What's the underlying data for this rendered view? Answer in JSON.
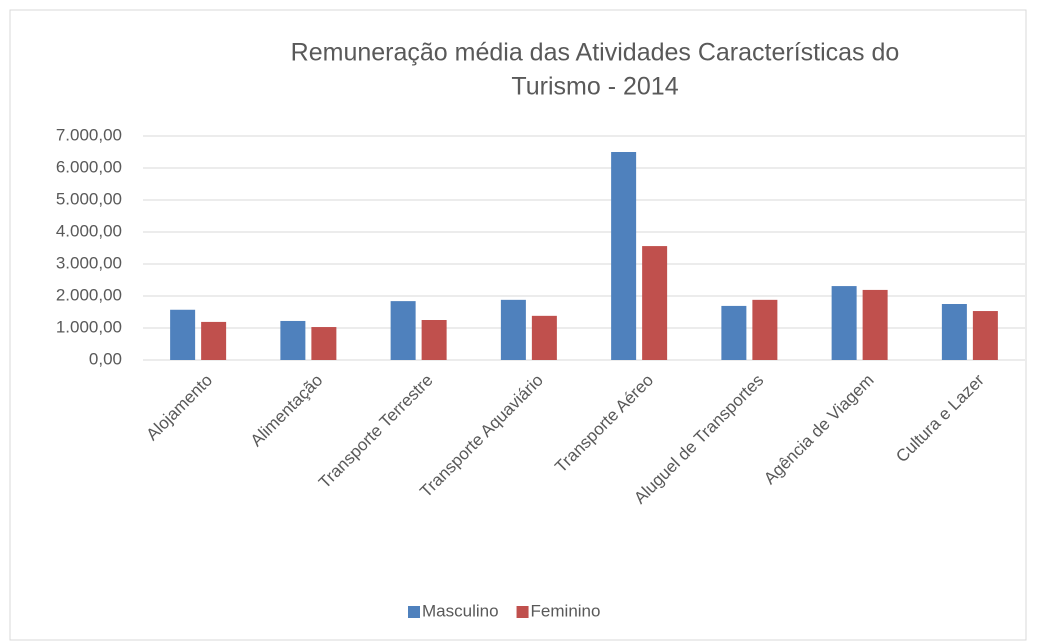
{
  "chart_data": {
    "type": "bar",
    "title": [
      "Remuneração média das Atividades Características do",
      "Turismo - 2014"
    ],
    "categories": [
      "Alojamento",
      "Alimentação",
      "Transporte Terrestre",
      "Transporte Aquaviário",
      "Transporte Aéreo",
      "Aluguel de Transportes",
      "Agência de Viagem",
      "Cultura e Lazer"
    ],
    "series": [
      {
        "name": "Masculino",
        "color": "#4f81bd",
        "values": [
          1570,
          1220,
          1840,
          1880,
          6500,
          1690,
          2310,
          1750
        ]
      },
      {
        "name": "Feminino",
        "color": "#c0504d",
        "values": [
          1190,
          1030,
          1250,
          1380,
          3560,
          1880,
          2190,
          1530
        ]
      }
    ],
    "ylim": [
      0,
      7000
    ],
    "yticks": [
      {
        "value": 0,
        "label": "0,00"
      },
      {
        "value": 1000,
        "label": "1.000,00"
      },
      {
        "value": 2000,
        "label": "2.000,00"
      },
      {
        "value": 3000,
        "label": "3.000,00"
      },
      {
        "value": 4000,
        "label": "4.000,00"
      },
      {
        "value": 5000,
        "label": "5.000,00"
      },
      {
        "value": 6000,
        "label": "6.000,00"
      },
      {
        "value": 7000,
        "label": "7.000,00"
      }
    ],
    "grid": true,
    "legend": "bottom"
  }
}
